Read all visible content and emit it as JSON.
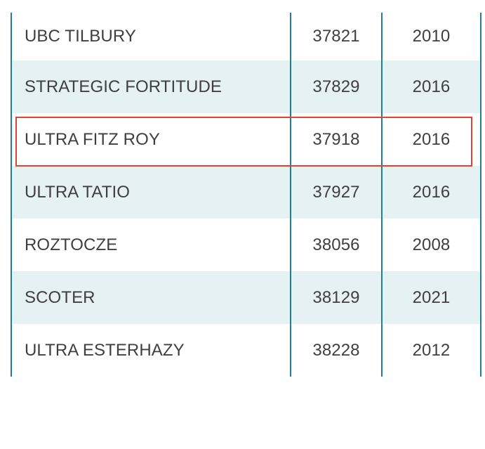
{
  "table": {
    "rows": [
      {
        "name": "UBC TILBURY",
        "number": "37821",
        "year": "2010"
      },
      {
        "name": "STRATEGIC FORTITUDE",
        "number": "37829",
        "year": "2016"
      },
      {
        "name": "ULTRA FITZ ROY",
        "number": "37918",
        "year": "2016"
      },
      {
        "name": "ULTRA TATIO",
        "number": "37927",
        "year": "2016"
      },
      {
        "name": "ROZTOCZE",
        "number": "38056",
        "year": "2008"
      },
      {
        "name": "SCOTER",
        "number": "38129",
        "year": "2021"
      },
      {
        "name": "ULTRA ESTERHAZY",
        "number": "38228",
        "year": "2012"
      }
    ],
    "highlighted_row": "ULTRA FITZ ROY"
  },
  "colors": {
    "rule": "#1f7f9a",
    "alt_row": "#e6f1f3",
    "highlight": "#d9472c",
    "text": "#3f3f3f"
  }
}
